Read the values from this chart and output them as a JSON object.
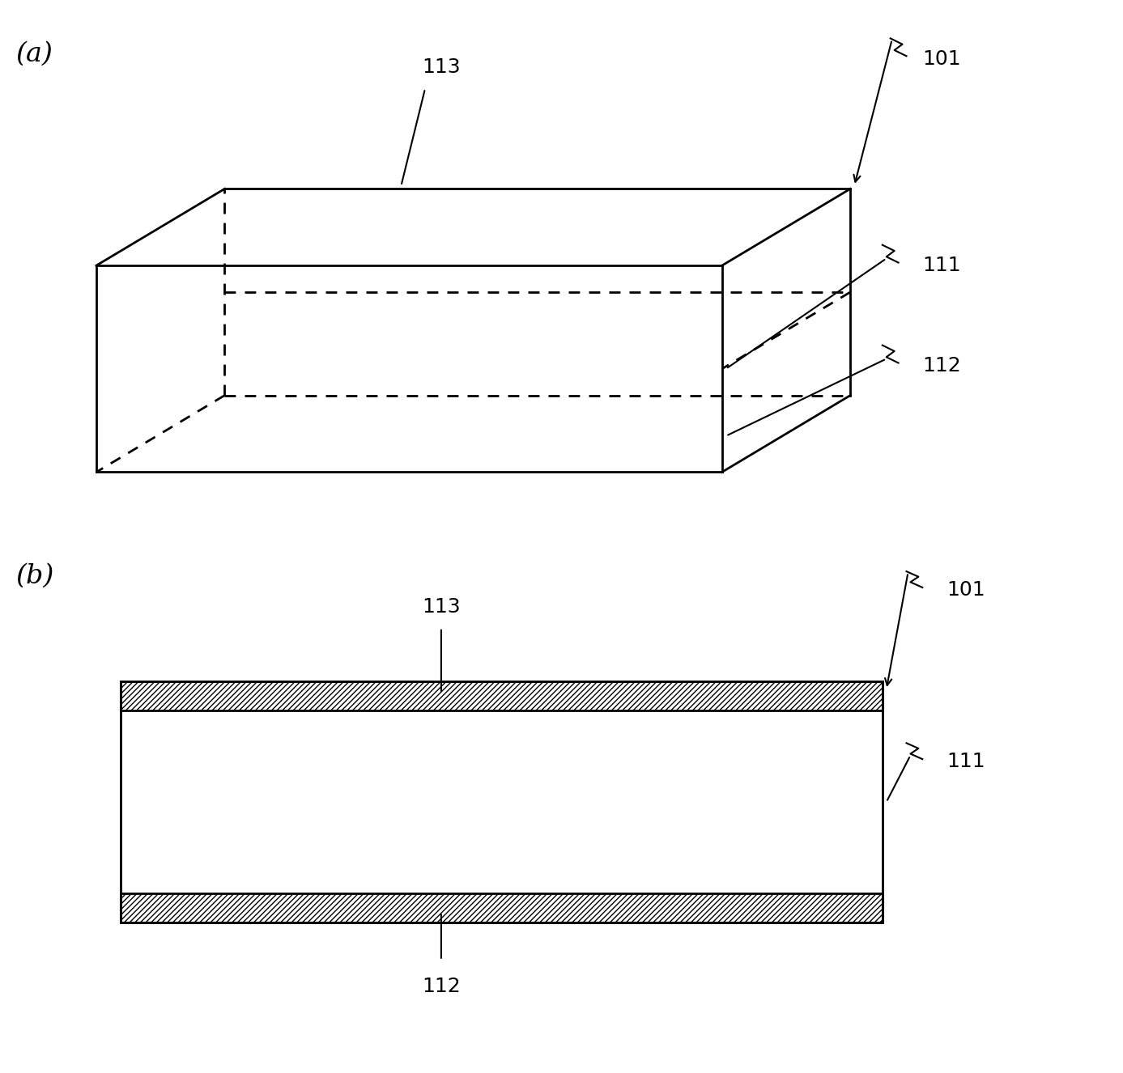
{
  "bg_color": "#ffffff",
  "line_color": "#000000",
  "label_a": "(a)",
  "label_b": "(b)",
  "label_101_a": "101",
  "label_111_a": "111",
  "label_112_a": "112",
  "label_113_a": "113",
  "label_101_b": "101",
  "label_111_b": "111",
  "label_112_b": "112",
  "label_113_b": "113",
  "figsize": [
    13.87,
    13.26
  ],
  "dpi": 100,
  "fs": 18
}
